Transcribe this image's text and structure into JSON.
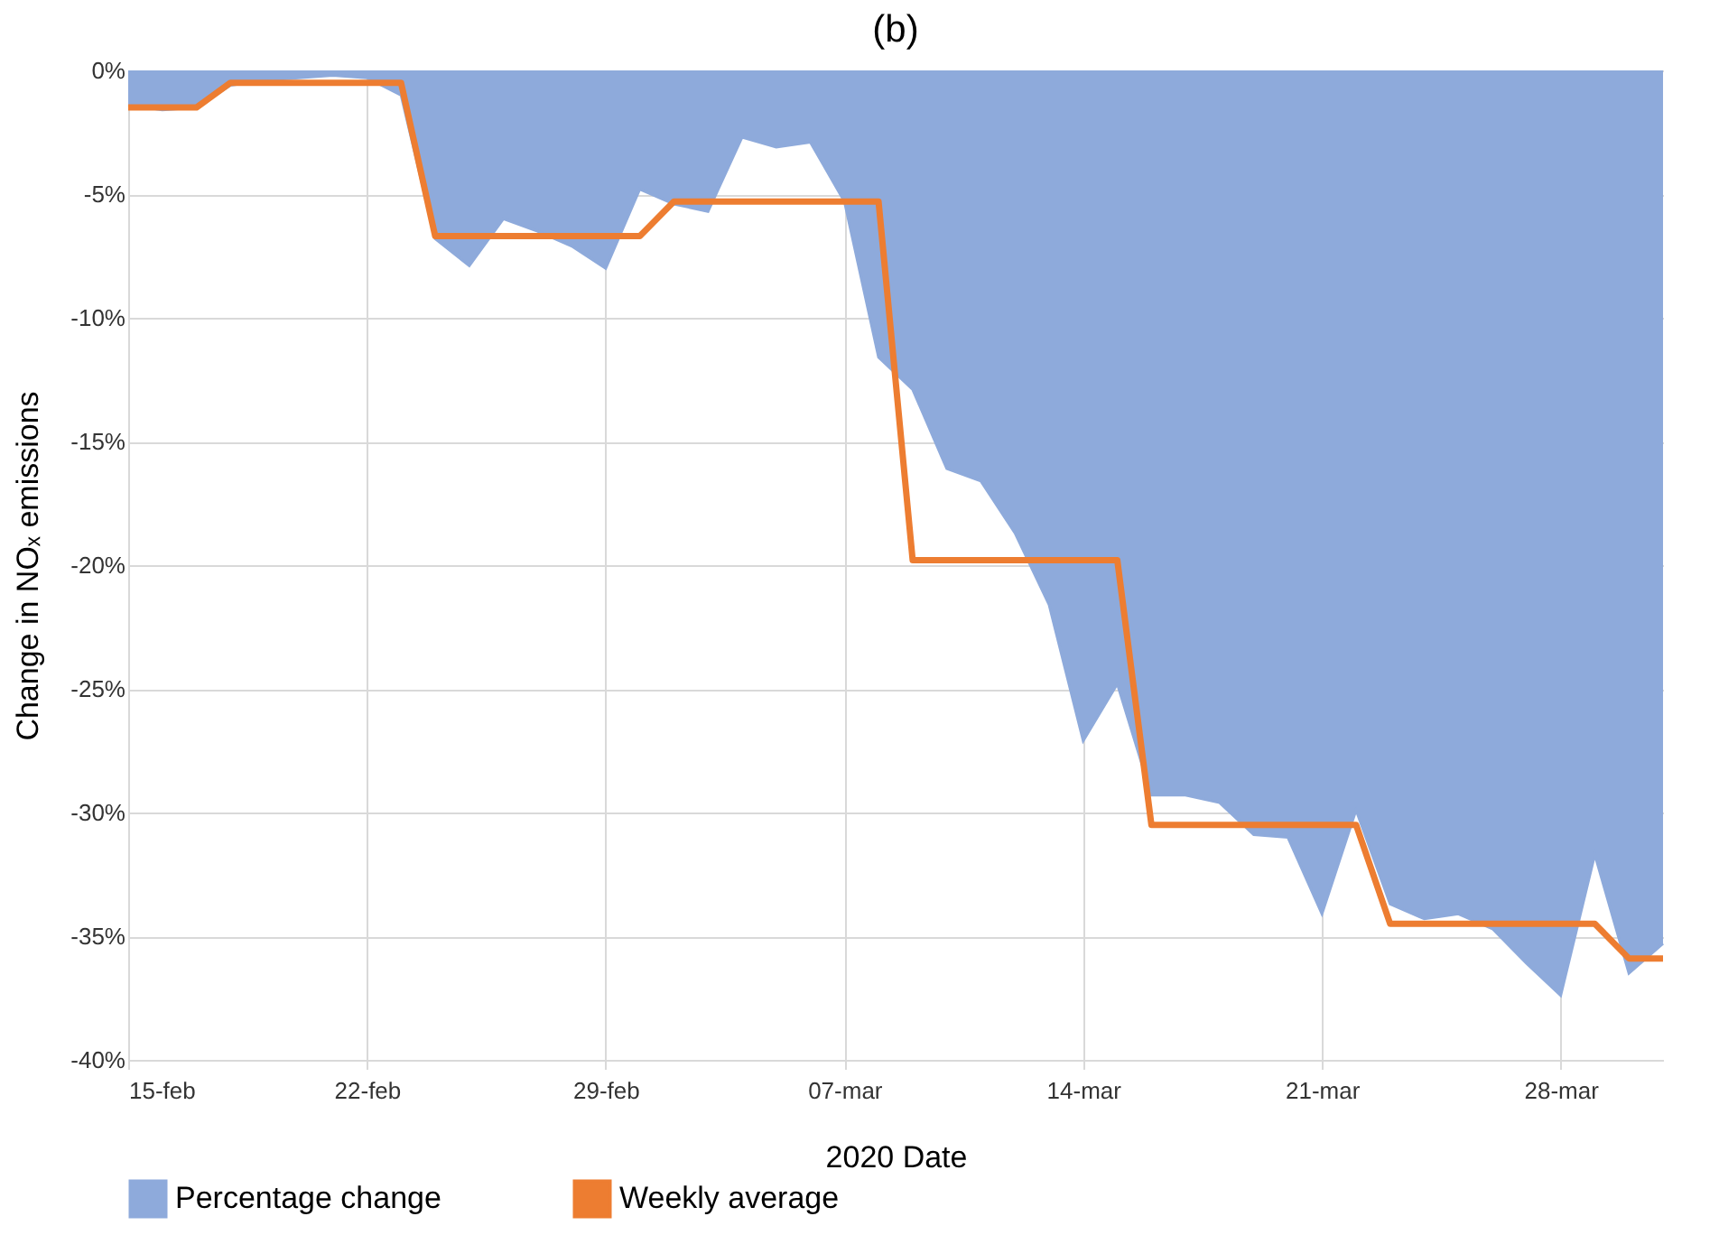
{
  "chart_data": {
    "type": "area",
    "title": "(b)",
    "xlabel": "2020 Date",
    "ylabel": "Change in NOₓ emissions",
    "x": [
      "2020-02-15",
      "2020-02-16",
      "2020-02-17",
      "2020-02-18",
      "2020-02-19",
      "2020-02-20",
      "2020-02-21",
      "2020-02-22",
      "2020-02-23",
      "2020-02-24",
      "2020-02-25",
      "2020-02-26",
      "2020-02-27",
      "2020-02-28",
      "2020-02-29",
      "2020-03-01",
      "2020-03-02",
      "2020-03-03",
      "2020-03-04",
      "2020-03-05",
      "2020-03-06",
      "2020-03-07",
      "2020-03-08",
      "2020-03-09",
      "2020-03-10",
      "2020-03-11",
      "2020-03-12",
      "2020-03-13",
      "2020-03-14",
      "2020-03-15",
      "2020-03-16",
      "2020-03-17",
      "2020-03-18",
      "2020-03-19",
      "2020-03-20",
      "2020-03-21",
      "2020-03-22",
      "2020-03-23",
      "2020-03-24",
      "2020-03-25",
      "2020-03-26",
      "2020-03-27",
      "2020-03-28",
      "2020-03-29",
      "2020-03-30",
      "2020-03-31"
    ],
    "series": [
      {
        "name": "Percentage change",
        "type": "area",
        "color": "#8eaadb",
        "values": [
          -1.4,
          -1.6,
          -1.5,
          -0.6,
          -0.4,
          -0.3,
          -0.2,
          -0.3,
          -1.0,
          -6.8,
          -7.9,
          -6.0,
          -6.5,
          -7.1,
          -8.0,
          -4.8,
          -5.4,
          -5.7,
          -2.7,
          -3.1,
          -2.9,
          -5.3,
          -11.6,
          -12.9,
          -16.1,
          -16.6,
          -18.7,
          -21.6,
          -27.1,
          -24.8,
          -29.3,
          -29.3,
          -29.6,
          -30.9,
          -31.0,
          -34.1,
          -29.9,
          -33.7,
          -34.3,
          -34.1,
          -34.7,
          -36.1,
          -37.4,
          -31.7,
          -36.5,
          -35.3
        ]
      },
      {
        "name": "Weekly average",
        "type": "line",
        "color": "#ed7d31",
        "values": [
          -1.5,
          -1.5,
          -1.5,
          -0.5,
          -0.5,
          -0.5,
          -0.5,
          -0.5,
          -0.5,
          -6.7,
          -6.7,
          -6.7,
          -6.7,
          -6.7,
          -6.7,
          -6.7,
          -5.3,
          -5.3,
          -5.3,
          -5.3,
          -5.3,
          -5.3,
          -5.3,
          -19.8,
          -19.8,
          -19.8,
          -19.8,
          -19.8,
          -19.8,
          -19.8,
          -30.5,
          -30.5,
          -30.5,
          -30.5,
          -30.5,
          -30.5,
          -30.5,
          -34.5,
          -34.5,
          -34.5,
          -34.5,
          -34.5,
          -34.5,
          -34.5,
          -35.9,
          -35.9
        ]
      }
    ],
    "xlim": [
      "2020-02-15",
      "2020-03-31"
    ],
    "xticks": [
      {
        "value": "2020-02-15",
        "label": "15-feb"
      },
      {
        "value": "2020-02-22",
        "label": "22-feb"
      },
      {
        "value": "2020-02-29",
        "label": "29-feb"
      },
      {
        "value": "2020-03-07",
        "label": "07-mar"
      },
      {
        "value": "2020-03-14",
        "label": "14-mar"
      },
      {
        "value": "2020-03-21",
        "label": "21-mar"
      },
      {
        "value": "2020-03-28",
        "label": "28-mar"
      }
    ],
    "ylim": [
      -40,
      0
    ],
    "yticks": [
      {
        "value": 0,
        "label": "0%"
      },
      {
        "value": -5,
        "label": "-5%"
      },
      {
        "value": -10,
        "label": "-10%"
      },
      {
        "value": -15,
        "label": "-15%"
      },
      {
        "value": -20,
        "label": "-20%"
      },
      {
        "value": -25,
        "label": "-25%"
      },
      {
        "value": -30,
        "label": "-30%"
      },
      {
        "value": -35,
        "label": "-35%"
      },
      {
        "value": -40,
        "label": "-40%"
      }
    ],
    "grid": true,
    "legend": "bottom"
  }
}
